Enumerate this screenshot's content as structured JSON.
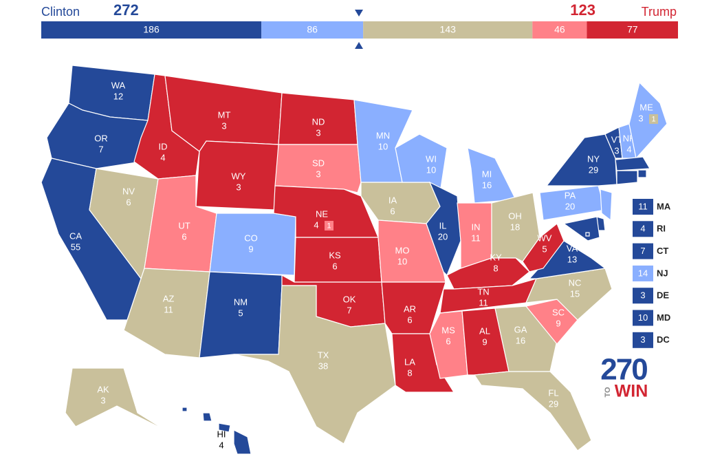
{
  "header": {
    "left_name": "Clinton",
    "left_total": 272,
    "right_name": "Trump",
    "right_total": 123,
    "segments": [
      {
        "value": 186,
        "color": "#244999"
      },
      {
        "value": 86,
        "color": "#8aafff"
      },
      {
        "value": 143,
        "color": "#c9c09b"
      },
      {
        "value": 46,
        "color": "#ff8188"
      },
      {
        "value": 77,
        "color": "#d22532"
      }
    ]
  },
  "states": [
    {
      "abbr": "WA",
      "votes": 12,
      "color": "#244999"
    },
    {
      "abbr": "OR",
      "votes": 7,
      "color": "#244999"
    },
    {
      "abbr": "CA",
      "votes": 55,
      "color": "#244999"
    },
    {
      "abbr": "NV",
      "votes": 6,
      "color": "#c9c09b"
    },
    {
      "abbr": "ID",
      "votes": 4,
      "color": "#d22532"
    },
    {
      "abbr": "MT",
      "votes": 3,
      "color": "#d22532"
    },
    {
      "abbr": "WY",
      "votes": 3,
      "color": "#d22532"
    },
    {
      "abbr": "UT",
      "votes": 6,
      "color": "#ff8188"
    },
    {
      "abbr": "CO",
      "votes": 9,
      "color": "#8aafff"
    },
    {
      "abbr": "AZ",
      "votes": 11,
      "color": "#c9c09b"
    },
    {
      "abbr": "NM",
      "votes": 5,
      "color": "#244999"
    },
    {
      "abbr": "ND",
      "votes": 3,
      "color": "#d22532"
    },
    {
      "abbr": "SD",
      "votes": 3,
      "color": "#ff8188"
    },
    {
      "abbr": "NE",
      "votes": 4,
      "color": "#d22532",
      "split": {
        "votes": 1,
        "color": "#ff8188"
      }
    },
    {
      "abbr": "KS",
      "votes": 6,
      "color": "#d22532"
    },
    {
      "abbr": "OK",
      "votes": 7,
      "color": "#d22532"
    },
    {
      "abbr": "TX",
      "votes": 38,
      "color": "#c9c09b"
    },
    {
      "abbr": "MN",
      "votes": 10,
      "color": "#8aafff"
    },
    {
      "abbr": "IA",
      "votes": 6,
      "color": "#c9c09b"
    },
    {
      "abbr": "MO",
      "votes": 10,
      "color": "#ff8188"
    },
    {
      "abbr": "AR",
      "votes": 6,
      "color": "#d22532"
    },
    {
      "abbr": "LA",
      "votes": 8,
      "color": "#d22532"
    },
    {
      "abbr": "WI",
      "votes": 10,
      "color": "#8aafff"
    },
    {
      "abbr": "IL",
      "votes": 20,
      "color": "#244999"
    },
    {
      "abbr": "MI",
      "votes": 16,
      "color": "#8aafff"
    },
    {
      "abbr": "IN",
      "votes": 11,
      "color": "#ff8188"
    },
    {
      "abbr": "OH",
      "votes": 18,
      "color": "#c9c09b"
    },
    {
      "abbr": "KY",
      "votes": 8,
      "color": "#d22532"
    },
    {
      "abbr": "TN",
      "votes": 11,
      "color": "#d22532"
    },
    {
      "abbr": "MS",
      "votes": 6,
      "color": "#ff8188"
    },
    {
      "abbr": "AL",
      "votes": 9,
      "color": "#d22532"
    },
    {
      "abbr": "GA",
      "votes": 16,
      "color": "#c9c09b"
    },
    {
      "abbr": "FL",
      "votes": 29,
      "color": "#c9c09b"
    },
    {
      "abbr": "SC",
      "votes": 9,
      "color": "#ff8188"
    },
    {
      "abbr": "NC",
      "votes": 15,
      "color": "#c9c09b"
    },
    {
      "abbr": "VA",
      "votes": 13,
      "color": "#244999"
    },
    {
      "abbr": "WV",
      "votes": 5,
      "color": "#d22532"
    },
    {
      "abbr": "PA",
      "votes": 20,
      "color": "#8aafff"
    },
    {
      "abbr": "NY",
      "votes": 29,
      "color": "#244999"
    },
    {
      "abbr": "VT",
      "votes": 3,
      "color": "#244999"
    },
    {
      "abbr": "NH",
      "votes": 4,
      "color": "#8aafff"
    },
    {
      "abbr": "ME",
      "votes": 3,
      "color": "#8aafff",
      "split": {
        "votes": 1,
        "color": "#c9c09b"
      }
    },
    {
      "abbr": "AK",
      "votes": 3,
      "color": "#c9c09b"
    },
    {
      "abbr": "HI",
      "votes": 4,
      "color": "#244999"
    }
  ],
  "small_states": [
    {
      "abbr": "MA",
      "votes": 11,
      "color": "#244999"
    },
    {
      "abbr": "RI",
      "votes": 4,
      "color": "#244999"
    },
    {
      "abbr": "CT",
      "votes": 7,
      "color": "#244999"
    },
    {
      "abbr": "NJ",
      "votes": 14,
      "color": "#8aafff"
    },
    {
      "abbr": "DE",
      "votes": 3,
      "color": "#244999"
    },
    {
      "abbr": "MD",
      "votes": 10,
      "color": "#244999"
    },
    {
      "abbr": "DC",
      "votes": 3,
      "color": "#244999"
    }
  ],
  "logo": {
    "number": "270",
    "to": "TO",
    "win": "WIN"
  }
}
